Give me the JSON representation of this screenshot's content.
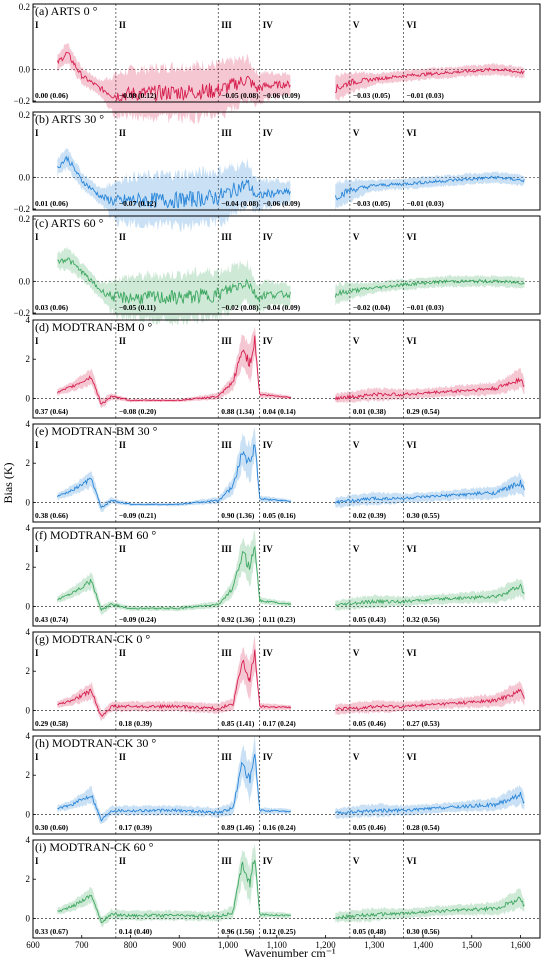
{
  "figure": {
    "ylabel": "Bias (K)",
    "xlabel": "Wavenumber cm⁻¹",
    "xticks": [
      "600",
      "700",
      "800",
      "900",
      "1,000",
      "1,100",
      "1,200",
      "1,300",
      "1,400",
      "1,500",
      "1,600"
    ]
  },
  "chart_data": [
    {
      "type": "line",
      "title": "(a) ARTS 0 °",
      "color": "#d6204e",
      "xlim": [
        600,
        1640
      ],
      "ylim": [
        -0.1,
        0.2
      ],
      "yticks": [
        "0.2",
        "0.0",
        "−0.2"
      ],
      "regions": [
        "I",
        "II",
        "III",
        "IV",
        "V",
        "VI"
      ],
      "region_bounds": [
        770,
        980,
        1065,
        1250,
        1360
      ],
      "stats": [
        "0.00 (0.06)",
        "−0.08 (0.12)",
        "−0.05 (0.08)",
        "−0.06 (0.09)",
        "−0.03 (0.05)",
        "−0.01 (0.03)"
      ],
      "series": [
        {
          "x": [
            650,
            670,
            700,
            740,
            770,
            800,
            900,
            980,
            1040,
            1060,
            1080,
            1130,
            1220,
            1250,
            1300,
            1360,
            1450,
            1550,
            1610
          ],
          "values": [
            0.02,
            0.05,
            -0.02,
            -0.06,
            -0.08,
            -0.075,
            -0.07,
            -0.065,
            -0.03,
            -0.06,
            -0.05,
            -0.045,
            -0.06,
            -0.04,
            -0.03,
            -0.02,
            -0.01,
            0.0,
            -0.01
          ],
          "spread": [
            0.03,
            0.04,
            0.03,
            0.03,
            0.08,
            0.09,
            0.1,
            0.1,
            0.08,
            0.06,
            0.05,
            0.04,
            0.05,
            0.04,
            0.02,
            0.02,
            0.02,
            0.02,
            0.02
          ]
        }
      ]
    },
    {
      "type": "line",
      "title": "(b) ARTS 30 °",
      "color": "#2a86d9",
      "xlim": [
        600,
        1640
      ],
      "ylim": [
        -0.1,
        0.2
      ],
      "yticks": [
        "0.2",
        "0.0",
        "−0.2"
      ],
      "regions": [
        "I",
        "II",
        "III",
        "IV",
        "V",
        "VI"
      ],
      "region_bounds": [
        770,
        980,
        1065,
        1250,
        1360
      ],
      "stats": [
        "0.01 (0.06)",
        "−0.07 (0.12)",
        "−0.04 (0.08)",
        "−0.06 (0.09)",
        "−0.03 (0.05)",
        "−0.01 (0.03)"
      ],
      "series": [
        {
          "x": [
            650,
            670,
            700,
            740,
            770,
            800,
            900,
            980,
            1040,
            1060,
            1080,
            1130,
            1220,
            1250,
            1300,
            1360,
            1450,
            1550,
            1610
          ],
          "values": [
            0.03,
            0.06,
            -0.01,
            -0.06,
            -0.075,
            -0.07,
            -0.07,
            -0.06,
            -0.02,
            -0.06,
            -0.05,
            -0.045,
            -0.06,
            -0.04,
            -0.025,
            -0.02,
            -0.01,
            0.0,
            -0.01
          ],
          "spread": [
            0.03,
            0.04,
            0.03,
            0.03,
            0.08,
            0.09,
            0.1,
            0.1,
            0.08,
            0.06,
            0.05,
            0.04,
            0.05,
            0.04,
            0.02,
            0.02,
            0.02,
            0.02,
            0.02
          ]
        }
      ]
    },
    {
      "type": "line",
      "title": "(c) ARTS 60 °",
      "color": "#3ea861",
      "xlim": [
        600,
        1640
      ],
      "ylim": [
        -0.1,
        0.2
      ],
      "yticks": [
        "0.2",
        "0.0",
        "−0.2"
      ],
      "regions": [
        "I",
        "II",
        "III",
        "IV",
        "V",
        "VI"
      ],
      "region_bounds": [
        770,
        980,
        1065,
        1250,
        1360
      ],
      "stats": [
        "0.03 (0.06)",
        "−0.05 (0.11)",
        "−0.02 (0.08)",
        "−0.04 (0.09)",
        "−0.02 (0.04)",
        "−0.01 (0.03)"
      ],
      "series": [
        {
          "x": [
            650,
            670,
            700,
            740,
            770,
            800,
            900,
            980,
            1040,
            1060,
            1080,
            1130,
            1220,
            1250,
            1300,
            1360,
            1450,
            1550,
            1610
          ],
          "values": [
            0.06,
            0.07,
            0.03,
            -0.03,
            -0.05,
            -0.05,
            -0.05,
            -0.04,
            0.0,
            -0.05,
            -0.04,
            -0.04,
            -0.04,
            -0.03,
            -0.02,
            -0.01,
            0.0,
            0.0,
            -0.005
          ],
          "spread": [
            0.03,
            0.04,
            0.03,
            0.03,
            0.07,
            0.08,
            0.09,
            0.09,
            0.07,
            0.05,
            0.05,
            0.04,
            0.04,
            0.03,
            0.02,
            0.02,
            0.02,
            0.02,
            0.02
          ]
        }
      ]
    },
    {
      "type": "line",
      "title": "(d) MODTRAN-BM 0 °",
      "color": "#d6204e",
      "xlim": [
        600,
        1640
      ],
      "ylim": [
        -1,
        4
      ],
      "yticks": [
        "4",
        "2",
        "0"
      ],
      "regions": [
        "I",
        "II",
        "III",
        "IV",
        "V",
        "VI"
      ],
      "region_bounds": [
        770,
        980,
        1065,
        1250,
        1360
      ],
      "stats": [
        "0.37 (0.64)",
        "−0.08 (0.20)",
        "0.88 (1.34)",
        "0.04 (0.14)",
        "0.01 (0.38)",
        "0.29 (0.54)"
      ],
      "series": [
        {
          "x": [
            650,
            680,
            720,
            740,
            760,
            800,
            900,
            980,
            1010,
            1030,
            1045,
            1055,
            1065,
            1130,
            1220,
            1300,
            1360,
            1450,
            1550,
            1600,
            1610
          ],
          "values": [
            0.3,
            0.6,
            1.1,
            -0.3,
            0.1,
            -0.1,
            -0.1,
            0.1,
            0.8,
            2.5,
            1.8,
            3.0,
            0.2,
            0.05,
            0.0,
            0.2,
            0.2,
            0.35,
            0.5,
            1.0,
            0.5
          ],
          "spread": [
            0.2,
            0.3,
            0.5,
            0.3,
            0.2,
            0.1,
            0.1,
            0.2,
            0.5,
            1.0,
            1.2,
            1.0,
            0.2,
            0.1,
            0.3,
            0.4,
            0.3,
            0.3,
            0.4,
            0.6,
            0.4
          ]
        }
      ]
    },
    {
      "type": "line",
      "title": "(e) MODTRAN-BM 30 °",
      "color": "#2a86d9",
      "xlim": [
        600,
        1640
      ],
      "ylim": [
        -1,
        4
      ],
      "yticks": [
        "4",
        "2",
        "0"
      ],
      "regions": [
        "I",
        "II",
        "III",
        "IV",
        "V",
        "VI"
      ],
      "region_bounds": [
        770,
        980,
        1065,
        1250,
        1360
      ],
      "stats": [
        "0.38 (0.66)",
        "−0.09 (0.21)",
        "0.90 (1.36)",
        "0.05 (0.16)",
        "0.02 (0.39)",
        "0.30 (0.55)"
      ],
      "series": [
        {
          "x": [
            650,
            680,
            720,
            740,
            760,
            800,
            900,
            980,
            1010,
            1030,
            1045,
            1055,
            1065,
            1130,
            1220,
            1300,
            1360,
            1450,
            1550,
            1600,
            1610
          ],
          "values": [
            0.3,
            0.6,
            1.2,
            -0.3,
            0.1,
            -0.1,
            -0.1,
            0.1,
            0.8,
            2.6,
            1.9,
            3.1,
            0.2,
            0.05,
            0.0,
            0.2,
            0.2,
            0.35,
            0.5,
            1.0,
            0.5
          ],
          "spread": [
            0.2,
            0.3,
            0.5,
            0.3,
            0.2,
            0.1,
            0.1,
            0.2,
            0.5,
            1.0,
            1.2,
            1.0,
            0.2,
            0.1,
            0.3,
            0.4,
            0.3,
            0.3,
            0.4,
            0.6,
            0.4
          ]
        }
      ]
    },
    {
      "type": "line",
      "title": "(f) MODTRAN-BM 60 °",
      "color": "#3ea861",
      "xlim": [
        600,
        1640
      ],
      "ylim": [
        -1,
        4
      ],
      "yticks": [
        "4",
        "2",
        "0"
      ],
      "regions": [
        "I",
        "II",
        "III",
        "IV",
        "V",
        "VI"
      ],
      "region_bounds": [
        770,
        980,
        1065,
        1250,
        1360
      ],
      "stats": [
        "0.43 (0.74)",
        "−0.09 (0.24)",
        "0.92 (1.36)",
        "0.11 (0.23)",
        "0.05 (0.43)",
        "0.32 (0.56)"
      ],
      "series": [
        {
          "x": [
            650,
            680,
            720,
            740,
            760,
            800,
            900,
            980,
            1010,
            1030,
            1045,
            1055,
            1065,
            1130,
            1220,
            1300,
            1360,
            1450,
            1550,
            1600,
            1610
          ],
          "values": [
            0.35,
            0.7,
            1.3,
            -0.2,
            0.1,
            -0.1,
            -0.1,
            0.1,
            0.9,
            2.7,
            2.0,
            3.2,
            0.3,
            0.1,
            0.05,
            0.25,
            0.25,
            0.4,
            0.5,
            1.0,
            0.5
          ],
          "spread": [
            0.2,
            0.3,
            0.5,
            0.3,
            0.2,
            0.15,
            0.15,
            0.2,
            0.5,
            1.0,
            1.2,
            1.0,
            0.2,
            0.15,
            0.3,
            0.4,
            0.3,
            0.3,
            0.4,
            0.6,
            0.4
          ]
        }
      ]
    },
    {
      "type": "line",
      "title": "(g) MODTRAN-CK 0 °",
      "color": "#d6204e",
      "xlim": [
        600,
        1640
      ],
      "ylim": [
        -1,
        4
      ],
      "yticks": [
        "4",
        "2",
        "0"
      ],
      "regions": [
        "I",
        "II",
        "III",
        "IV",
        "V",
        "VI"
      ],
      "region_bounds": [
        770,
        980,
        1065,
        1250,
        1360
      ],
      "stats": [
        "0.29 (0.58)",
        "0.18 (0.39)",
        "0.85 (1.41)",
        "0.17 (0.24)",
        "0.05 (0.46)",
        "0.27 (0.53)"
      ],
      "series": [
        {
          "x": [
            650,
            680,
            720,
            740,
            760,
            800,
            900,
            980,
            1010,
            1030,
            1045,
            1055,
            1065,
            1130,
            1220,
            1300,
            1360,
            1450,
            1550,
            1600,
            1610
          ],
          "values": [
            0.3,
            0.5,
            1.0,
            -0.3,
            0.2,
            0.2,
            0.2,
            0.1,
            0.3,
            2.5,
            1.5,
            3.0,
            0.2,
            0.15,
            0.05,
            0.2,
            0.2,
            0.35,
            0.5,
            1.0,
            0.5
          ],
          "spread": [
            0.2,
            0.3,
            0.5,
            0.3,
            0.3,
            0.3,
            0.3,
            0.3,
            0.4,
            1.0,
            1.2,
            1.0,
            0.2,
            0.15,
            0.3,
            0.4,
            0.3,
            0.3,
            0.4,
            0.6,
            0.4
          ]
        }
      ]
    },
    {
      "type": "line",
      "title": "(h) MODTRAN-CK 30 °",
      "color": "#2a86d9",
      "xlim": [
        600,
        1640
      ],
      "ylim": [
        -1,
        4
      ],
      "yticks": [
        "4",
        "2",
        "0"
      ],
      "regions": [
        "I",
        "II",
        "III",
        "IV",
        "V",
        "VI"
      ],
      "region_bounds": [
        770,
        980,
        1065,
        1250,
        1360
      ],
      "stats": [
        "0.30 (0.60)",
        "0.17 (0.39)",
        "0.89 (1.46)",
        "0.16 (0.24)",
        "0.05 (0.46)",
        "0.28 (0.54)"
      ],
      "series": [
        {
          "x": [
            650,
            680,
            720,
            740,
            760,
            800,
            900,
            980,
            1010,
            1030,
            1045,
            1055,
            1065,
            1130,
            1220,
            1300,
            1360,
            1450,
            1550,
            1600,
            1610
          ],
          "values": [
            0.3,
            0.5,
            1.0,
            -0.3,
            0.2,
            0.2,
            0.2,
            0.1,
            0.3,
            2.7,
            1.6,
            3.1,
            0.2,
            0.15,
            0.05,
            0.2,
            0.2,
            0.35,
            0.5,
            1.0,
            0.5
          ],
          "spread": [
            0.2,
            0.3,
            0.5,
            0.3,
            0.3,
            0.3,
            0.3,
            0.3,
            0.4,
            1.0,
            1.2,
            1.0,
            0.2,
            0.15,
            0.3,
            0.4,
            0.3,
            0.3,
            0.4,
            0.6,
            0.4
          ]
        }
      ]
    },
    {
      "type": "line",
      "title": "(i) MODTRAN-CK 60 °",
      "color": "#3ea861",
      "xlim": [
        600,
        1640
      ],
      "ylim": [
        -1,
        4
      ],
      "yticks": [
        "4",
        "2",
        "0"
      ],
      "regions": [
        "I",
        "II",
        "III",
        "IV",
        "V",
        "VI"
      ],
      "region_bounds": [
        770,
        980,
        1065,
        1250,
        1360
      ],
      "stats": [
        "0.33 (0.67)",
        "0.14 (0.40)",
        "0.96 (1.56)",
        "0.12 (0.25)",
        "0.05 (0.48)",
        "0.30 (0.56)"
      ],
      "series": [
        {
          "x": [
            650,
            680,
            720,
            740,
            760,
            800,
            900,
            980,
            1010,
            1030,
            1045,
            1055,
            1065,
            1130,
            1220,
            1300,
            1360,
            1450,
            1550,
            1600,
            1610
          ],
          "values": [
            0.35,
            0.6,
            1.2,
            -0.2,
            0.2,
            0.15,
            0.15,
            0.1,
            0.3,
            2.8,
            1.7,
            3.2,
            0.2,
            0.15,
            0.05,
            0.2,
            0.25,
            0.4,
            0.5,
            1.0,
            0.5
          ],
          "spread": [
            0.2,
            0.3,
            0.5,
            0.3,
            0.3,
            0.3,
            0.3,
            0.3,
            0.4,
            1.0,
            1.2,
            1.0,
            0.2,
            0.15,
            0.3,
            0.4,
            0.3,
            0.3,
            0.4,
            0.6,
            0.4
          ]
        }
      ]
    }
  ]
}
